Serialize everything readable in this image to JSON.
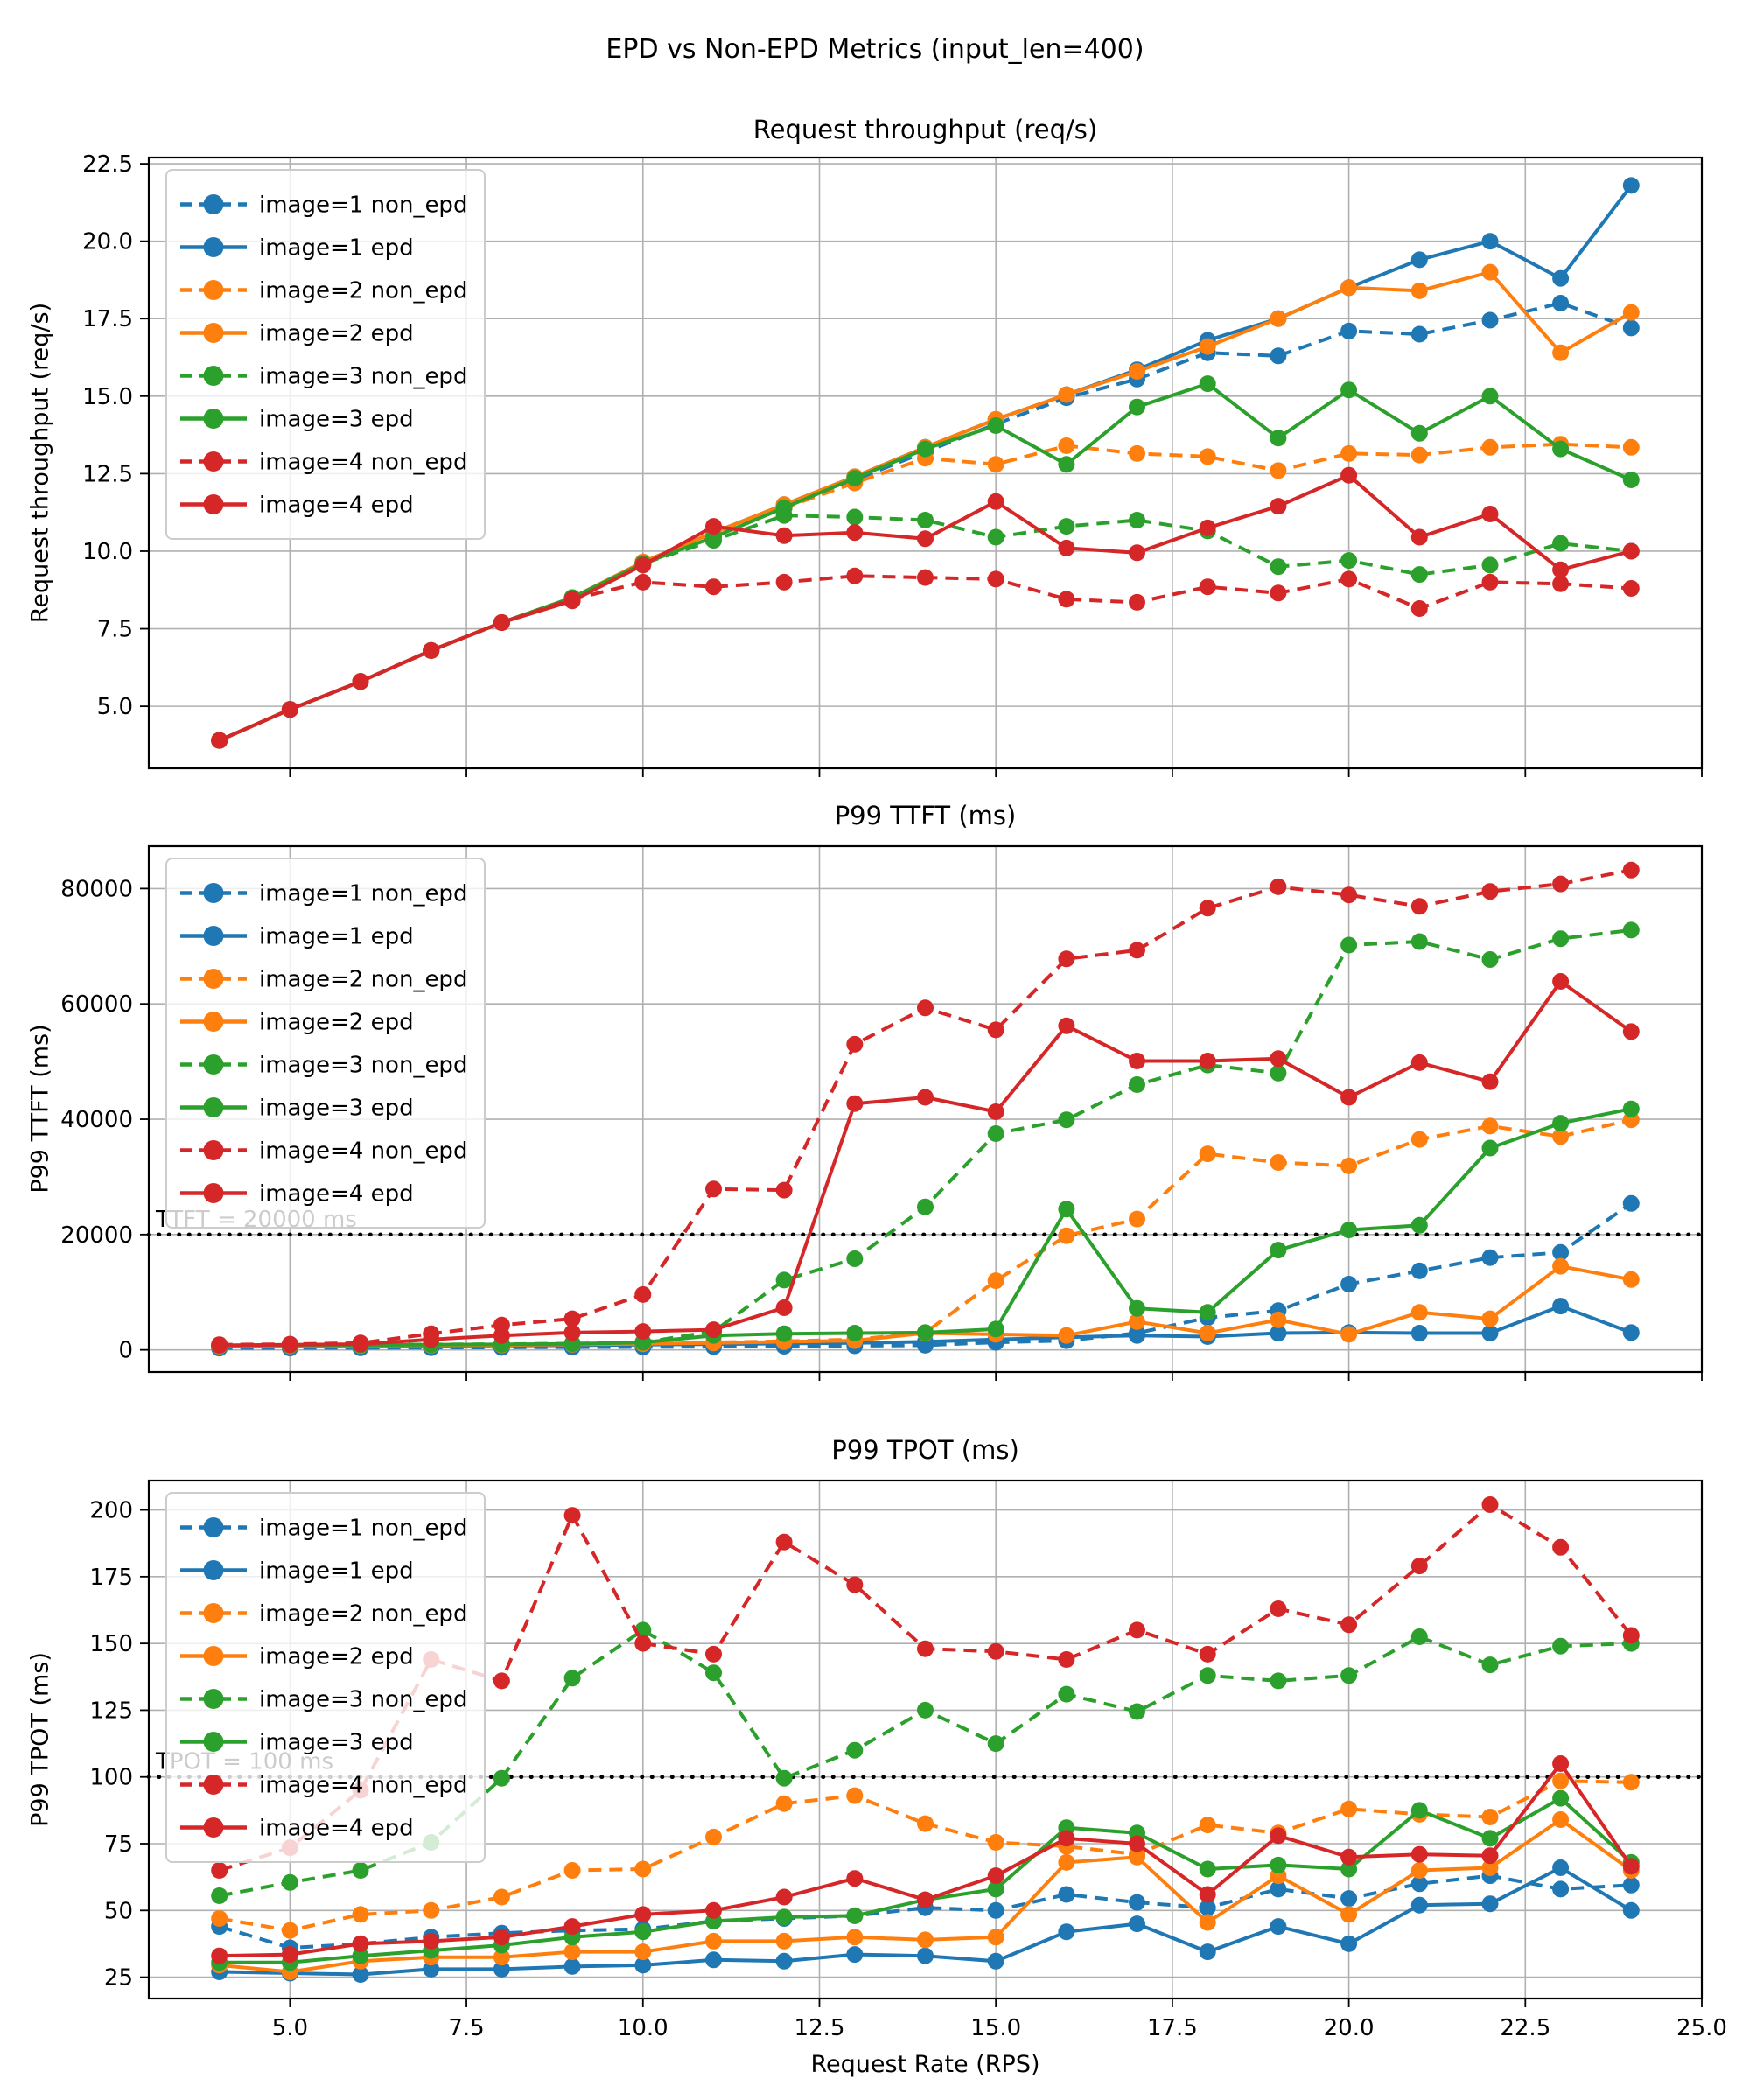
{
  "suptitle": "EPD vs Non-EPD Metrics (input_len=400)",
  "xlabel": "Request Rate (RPS)",
  "grid_color": "#b0b0b0",
  "threshold_color": "#000000",
  "legend_labels": [
    "image=1 non_epd",
    "image=1 epd",
    "image=2 non_epd",
    "image=2 epd",
    "image=3 non_epd",
    "image=3 epd",
    "image=4 non_epd",
    "image=4 epd"
  ],
  "series_colors": {
    "image1": "#1f77b4",
    "image2": "#ff7f0e",
    "image3": "#2ca02c",
    "image4": "#d62728"
  },
  "xlim": [
    3,
    25
  ],
  "xticks": {
    "values": [
      5,
      7.5,
      10,
      12.5,
      15,
      17.5,
      20,
      22.5,
      25
    ],
    "labels": [
      "5.0",
      "7.5",
      "10.0",
      "12.5",
      "15.0",
      "17.5",
      "20.0",
      "22.5",
      "25.0"
    ]
  },
  "chart_data": [
    {
      "type": "line",
      "title": "Request throughput (req/s)",
      "ylabel": "Request throughput (req/s)",
      "ylim": [
        3.0,
        22.7
      ],
      "yticks": {
        "values": [
          5,
          7.5,
          10,
          12.5,
          15,
          17.5,
          20,
          22.5
        ],
        "labels": [
          "5.0",
          "7.5",
          "10.0",
          "12.5",
          "15.0",
          "17.5",
          "20.0",
          "22.5"
        ]
      },
      "show_x_labels": false,
      "hline": null,
      "x": [
        4,
        5,
        6,
        7,
        8,
        9,
        10,
        11,
        12,
        13,
        14,
        15,
        16,
        17,
        18,
        19,
        20,
        21,
        22,
        23,
        24
      ],
      "series": [
        {
          "label": "image=1 non_epd",
          "color": "#1f77b4",
          "dashed": true,
          "values": [
            3.9,
            4.9,
            5.8,
            6.8,
            7.7,
            8.5,
            9.6,
            10.5,
            11.4,
            12.3,
            13.2,
            14.1,
            14.95,
            15.55,
            16.4,
            16.3,
            17.1,
            17.0,
            17.45,
            18.0,
            17.2
          ]
        },
        {
          "label": "image=1 epd",
          "color": "#1f77b4",
          "dashed": false,
          "values": [
            3.9,
            4.9,
            5.8,
            6.8,
            7.7,
            8.5,
            9.65,
            10.6,
            11.5,
            12.4,
            13.35,
            14.25,
            15.05,
            15.85,
            16.8,
            17.5,
            18.5,
            19.4,
            20.0,
            18.8,
            21.8
          ]
        },
        {
          "label": "image=2 non_epd",
          "color": "#ff7f0e",
          "dashed": true,
          "values": [
            3.9,
            4.9,
            5.8,
            6.8,
            7.7,
            8.5,
            9.6,
            10.5,
            11.4,
            12.2,
            13.0,
            12.8,
            13.4,
            13.15,
            13.05,
            12.6,
            13.15,
            13.1,
            13.35,
            13.45,
            13.35
          ]
        },
        {
          "label": "image=2 epd",
          "color": "#ff7f0e",
          "dashed": false,
          "values": [
            3.9,
            4.9,
            5.8,
            6.8,
            7.7,
            8.5,
            9.65,
            10.6,
            11.5,
            12.4,
            13.35,
            14.25,
            15.05,
            15.8,
            16.6,
            17.5,
            18.5,
            18.4,
            19.0,
            16.4,
            17.7
          ]
        },
        {
          "label": "image=3 non_epd",
          "color": "#2ca02c",
          "dashed": true,
          "values": [
            3.9,
            4.9,
            5.8,
            6.8,
            7.7,
            8.5,
            9.6,
            10.35,
            11.15,
            11.1,
            11.0,
            10.45,
            10.8,
            11.0,
            10.65,
            9.5,
            9.7,
            9.25,
            9.55,
            10.25,
            10.0
          ]
        },
        {
          "label": "image=3 epd",
          "color": "#2ca02c",
          "dashed": false,
          "values": [
            3.9,
            4.9,
            5.8,
            6.8,
            7.7,
            8.5,
            9.6,
            10.45,
            11.4,
            12.35,
            13.3,
            14.05,
            12.8,
            14.65,
            15.4,
            13.65,
            15.2,
            13.8,
            15.0,
            13.3,
            12.3
          ]
        },
        {
          "label": "image=4 non_epd",
          "color": "#d62728",
          "dashed": true,
          "values": [
            3.9,
            4.9,
            5.8,
            6.8,
            7.7,
            8.45,
            9.0,
            8.85,
            9.0,
            9.2,
            9.15,
            9.1,
            8.45,
            8.35,
            8.85,
            8.65,
            9.1,
            8.15,
            9.0,
            8.95,
            8.8
          ]
        },
        {
          "label": "image=4 epd",
          "color": "#d62728",
          "dashed": false,
          "values": [
            3.9,
            4.9,
            5.8,
            6.8,
            7.7,
            8.4,
            9.55,
            10.8,
            10.5,
            10.6,
            10.4,
            11.6,
            10.1,
            9.95,
            10.75,
            11.45,
            12.45,
            10.45,
            11.2,
            9.4,
            10.0
          ]
        }
      ]
    },
    {
      "type": "line",
      "title": "P99 TTFT (ms)",
      "ylabel": "P99 TTFT (ms)",
      "ylim": [
        -3845,
        87345
      ],
      "yticks": {
        "values": [
          0,
          20000,
          40000,
          60000,
          80000
        ],
        "labels": [
          "0",
          "20000",
          "40000",
          "60000",
          "80000"
        ]
      },
      "show_x_labels": false,
      "hline": {
        "y": 20000,
        "text": "TTFT = 20000 ms"
      },
      "x": [
        4,
        5,
        6,
        7,
        8,
        9,
        10,
        11,
        12,
        13,
        14,
        15,
        16,
        17,
        18,
        19,
        20,
        21,
        22,
        23,
        24
      ],
      "series": [
        {
          "label": "image=1 non_epd",
          "color": "#1f77b4",
          "dashed": true,
          "values": [
            300,
            320,
            350,
            380,
            420,
            460,
            500,
            560,
            630,
            700,
            800,
            1300,
            1600,
            2900,
            5600,
            6800,
            11400,
            13700,
            16000,
            16900,
            25400
          ]
        },
        {
          "label": "image=1 epd",
          "color": "#1f77b4",
          "dashed": false,
          "values": [
            600,
            620,
            650,
            700,
            750,
            800,
            900,
            1000,
            1100,
            1200,
            1400,
            1800,
            2200,
            2500,
            2300,
            2900,
            3000,
            2900,
            2900,
            7600,
            3000
          ]
        },
        {
          "label": "image=2 non_epd",
          "color": "#ff7f0e",
          "dashed": true,
          "values": [
            700,
            750,
            800,
            850,
            900,
            1000,
            1100,
            1300,
            1500,
            1800,
            3000,
            12000,
            19800,
            22700,
            34000,
            32500,
            31900,
            36500,
            38800,
            37000,
            39900
          ]
        },
        {
          "label": "image=2 epd",
          "color": "#ff7f0e",
          "dashed": false,
          "values": [
            650,
            700,
            750,
            800,
            850,
            950,
            1050,
            1200,
            1400,
            1600,
            2900,
            2700,
            2500,
            4900,
            2900,
            5200,
            2700,
            6500,
            5400,
            14500,
            12200
          ]
        },
        {
          "label": "image=3 non_epd",
          "color": "#2ca02c",
          "dashed": true,
          "values": [
            800,
            850,
            900,
            950,
            1000,
            1100,
            1300,
            3200,
            12100,
            15800,
            24800,
            37500,
            39900,
            46000,
            49400,
            48000,
            70200,
            70800,
            67700,
            71300,
            72800
          ]
        },
        {
          "label": "image=3 epd",
          "color": "#2ca02c",
          "dashed": false,
          "values": [
            750,
            800,
            850,
            900,
            950,
            1050,
            1300,
            2500,
            2800,
            2900,
            3000,
            3600,
            24400,
            7200,
            6500,
            17300,
            20800,
            21600,
            35000,
            39300,
            41800
          ]
        },
        {
          "label": "image=4 non_epd",
          "color": "#d62728",
          "dashed": true,
          "values": [
            900,
            1000,
            1200,
            2800,
            4300,
            5400,
            9600,
            27900,
            27700,
            53000,
            59300,
            55500,
            67800,
            69300,
            76600,
            80300,
            78900,
            76900,
            79500,
            80800,
            83200
          ]
        },
        {
          "label": "image=4 epd",
          "color": "#d62728",
          "dashed": false,
          "values": [
            800,
            900,
            1000,
            1800,
            2500,
            3000,
            3200,
            3500,
            7300,
            42700,
            43800,
            41300,
            56200,
            50100,
            50100,
            50500,
            43800,
            49800,
            46500,
            63900,
            55200
          ]
        }
      ]
    },
    {
      "type": "line",
      "title": "P99 TPOT (ms)",
      "ylabel": "P99 TPOT (ms)",
      "ylim": [
        17,
        211
      ],
      "yticks": {
        "values": [
          25,
          50,
          75,
          100,
          125,
          150,
          175,
          200
        ],
        "labels": [
          "25",
          "50",
          "75",
          "100",
          "125",
          "150",
          "175",
          "200"
        ]
      },
      "show_x_labels": true,
      "hline": {
        "y": 100,
        "text": "TPOT = 100 ms"
      },
      "x": [
        4,
        5,
        6,
        7,
        8,
        9,
        10,
        11,
        12,
        13,
        14,
        15,
        16,
        17,
        18,
        19,
        20,
        21,
        22,
        23,
        24
      ],
      "series": [
        {
          "label": "image=1 non_epd",
          "color": "#1f77b4",
          "dashed": true,
          "values": [
            44,
            36,
            37.5,
            40,
            41.5,
            42.5,
            43,
            46,
            47,
            48,
            51,
            50,
            56,
            53,
            51,
            58,
            54.5,
            60,
            63,
            58,
            59.5
          ]
        },
        {
          "label": "image=1 epd",
          "color": "#1f77b4",
          "dashed": false,
          "values": [
            27,
            26.5,
            26,
            28,
            28,
            29,
            29.5,
            31.5,
            31,
            33.5,
            33,
            31,
            42,
            45,
            34.5,
            44,
            37.5,
            52,
            52.5,
            66,
            50
          ]
        },
        {
          "label": "image=2 non_epd",
          "color": "#ff7f0e",
          "dashed": true,
          "values": [
            47,
            42.5,
            48.5,
            50,
            55,
            65,
            65.5,
            77.5,
            90,
            93,
            82.5,
            75.5,
            74,
            71,
            82,
            79,
            88,
            86,
            85,
            98.5,
            98
          ]
        },
        {
          "label": "image=2 epd",
          "color": "#ff7f0e",
          "dashed": false,
          "values": [
            29.5,
            27,
            31,
            32.5,
            32.5,
            34.5,
            34.5,
            38.5,
            38.5,
            40,
            39,
            40,
            68,
            70,
            45.5,
            63,
            48.5,
            65,
            66,
            84,
            65
          ]
        },
        {
          "label": "image=3 non_epd",
          "color": "#2ca02c",
          "dashed": true,
          "values": [
            55.5,
            60.5,
            65,
            75.5,
            99.5,
            137,
            155,
            139,
            99.5,
            110,
            125,
            112.5,
            131,
            124.5,
            138,
            136,
            138,
            152.5,
            142,
            149,
            150
          ]
        },
        {
          "label": "image=3 epd",
          "color": "#2ca02c",
          "dashed": false,
          "values": [
            30.5,
            30.5,
            33,
            35,
            37,
            40,
            42,
            46,
            47.5,
            48,
            54,
            58,
            81,
            79,
            65.5,
            67,
            65.5,
            87.5,
            77,
            92,
            68
          ]
        },
        {
          "label": "image=4 non_epd",
          "color": "#d62728",
          "dashed": true,
          "values": [
            65,
            73.5,
            95,
            144,
            136,
            198,
            150,
            146,
            188,
            172,
            148,
            147,
            144,
            155,
            146,
            163,
            157,
            179,
            202,
            186,
            153
          ]
        },
        {
          "label": "image=4 epd",
          "color": "#d62728",
          "dashed": false,
          "values": [
            33,
            33.5,
            37.5,
            38.5,
            40,
            44,
            48.5,
            50,
            55,
            62,
            54,
            63,
            77,
            75,
            56,
            78,
            70,
            71,
            70.5,
            105,
            66.5
          ]
        }
      ]
    }
  ]
}
